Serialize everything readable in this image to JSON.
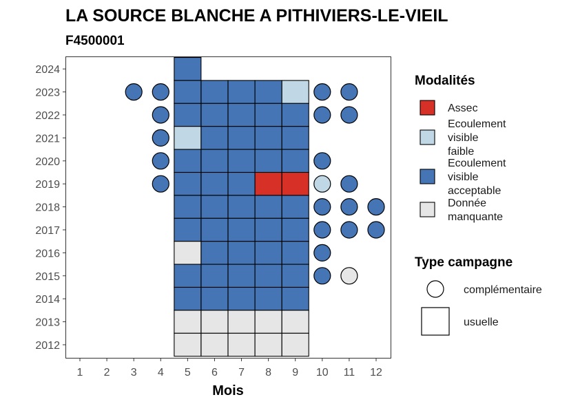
{
  "chart_data": {
    "type": "heatmap",
    "title": "LA SOURCE BLANCHE A PITHIVIERS-LE-VIEIL",
    "subtitle": "F4500001",
    "xlabel": "Mois",
    "ylabel": "",
    "x_ticks": [
      "1",
      "2",
      "3",
      "4",
      "5",
      "6",
      "7",
      "8",
      "9",
      "10",
      "11",
      "12"
    ],
    "y_ticks": [
      "2012",
      "2013",
      "2014",
      "2015",
      "2016",
      "2017",
      "2018",
      "2019",
      "2020",
      "2021",
      "2022",
      "2023",
      "2024"
    ],
    "xlim": [
      1,
      12
    ],
    "ylim": [
      2012,
      2024
    ],
    "grid": false,
    "colors": {
      "assec": "#d73027",
      "faible": "#c0d8e6",
      "acceptable": "#4575b4",
      "manquante": "#e6e6e6"
    },
    "legend_modalites": {
      "title": "Modalités",
      "position": "right",
      "items": [
        {
          "key": "assec",
          "lines": [
            "Assec"
          ]
        },
        {
          "key": "faible",
          "lines": [
            "Ecoulement",
            "visible",
            "faible"
          ]
        },
        {
          "key": "acceptable",
          "lines": [
            "Ecoulement",
            "visible",
            "acceptable"
          ]
        },
        {
          "key": "manquante",
          "lines": [
            "Donnée",
            "manquante"
          ]
        }
      ]
    },
    "legend_campagne": {
      "title": "Type campagne",
      "items": [
        {
          "shape": "circle",
          "label": "complémentaire"
        },
        {
          "shape": "square",
          "label": "usuelle"
        }
      ]
    },
    "usuelle": [
      {
        "year": 2024,
        "month": 5,
        "value": "acceptable"
      },
      {
        "year": 2023,
        "month": 5,
        "value": "acceptable"
      },
      {
        "year": 2023,
        "month": 6,
        "value": "acceptable"
      },
      {
        "year": 2023,
        "month": 7,
        "value": "acceptable"
      },
      {
        "year": 2023,
        "month": 8,
        "value": "acceptable"
      },
      {
        "year": 2023,
        "month": 9,
        "value": "faible"
      },
      {
        "year": 2022,
        "month": 5,
        "value": "acceptable"
      },
      {
        "year": 2022,
        "month": 6,
        "value": "acceptable"
      },
      {
        "year": 2022,
        "month": 7,
        "value": "acceptable"
      },
      {
        "year": 2022,
        "month": 8,
        "value": "acceptable"
      },
      {
        "year": 2022,
        "month": 9,
        "value": "acceptable"
      },
      {
        "year": 2021,
        "month": 5,
        "value": "faible"
      },
      {
        "year": 2021,
        "month": 6,
        "value": "acceptable"
      },
      {
        "year": 2021,
        "month": 7,
        "value": "acceptable"
      },
      {
        "year": 2021,
        "month": 8,
        "value": "acceptable"
      },
      {
        "year": 2021,
        "month": 9,
        "value": "acceptable"
      },
      {
        "year": 2020,
        "month": 5,
        "value": "acceptable"
      },
      {
        "year": 2020,
        "month": 6,
        "value": "acceptable"
      },
      {
        "year": 2020,
        "month": 7,
        "value": "acceptable"
      },
      {
        "year": 2020,
        "month": 8,
        "value": "acceptable"
      },
      {
        "year": 2020,
        "month": 9,
        "value": "acceptable"
      },
      {
        "year": 2019,
        "month": 5,
        "value": "acceptable"
      },
      {
        "year": 2019,
        "month": 6,
        "value": "acceptable"
      },
      {
        "year": 2019,
        "month": 7,
        "value": "acceptable"
      },
      {
        "year": 2019,
        "month": 8,
        "value": "assec"
      },
      {
        "year": 2019,
        "month": 9,
        "value": "assec"
      },
      {
        "year": 2018,
        "month": 5,
        "value": "acceptable"
      },
      {
        "year": 2018,
        "month": 6,
        "value": "acceptable"
      },
      {
        "year": 2018,
        "month": 7,
        "value": "acceptable"
      },
      {
        "year": 2018,
        "month": 8,
        "value": "acceptable"
      },
      {
        "year": 2018,
        "month": 9,
        "value": "acceptable"
      },
      {
        "year": 2017,
        "month": 5,
        "value": "acceptable"
      },
      {
        "year": 2017,
        "month": 6,
        "value": "acceptable"
      },
      {
        "year": 2017,
        "month": 7,
        "value": "acceptable"
      },
      {
        "year": 2017,
        "month": 8,
        "value": "acceptable"
      },
      {
        "year": 2017,
        "month": 9,
        "value": "acceptable"
      },
      {
        "year": 2016,
        "month": 5,
        "value": "manquante"
      },
      {
        "year": 2016,
        "month": 6,
        "value": "acceptable"
      },
      {
        "year": 2016,
        "month": 7,
        "value": "acceptable"
      },
      {
        "year": 2016,
        "month": 8,
        "value": "acceptable"
      },
      {
        "year": 2016,
        "month": 9,
        "value": "acceptable"
      },
      {
        "year": 2015,
        "month": 5,
        "value": "acceptable"
      },
      {
        "year": 2015,
        "month": 6,
        "value": "acceptable"
      },
      {
        "year": 2015,
        "month": 7,
        "value": "acceptable"
      },
      {
        "year": 2015,
        "month": 8,
        "value": "acceptable"
      },
      {
        "year": 2015,
        "month": 9,
        "value": "acceptable"
      },
      {
        "year": 2014,
        "month": 5,
        "value": "acceptable"
      },
      {
        "year": 2014,
        "month": 6,
        "value": "acceptable"
      },
      {
        "year": 2014,
        "month": 7,
        "value": "acceptable"
      },
      {
        "year": 2014,
        "month": 8,
        "value": "acceptable"
      },
      {
        "year": 2014,
        "month": 9,
        "value": "acceptable"
      },
      {
        "year": 2013,
        "month": 5,
        "value": "manquante"
      },
      {
        "year": 2013,
        "month": 6,
        "value": "manquante"
      },
      {
        "year": 2013,
        "month": 7,
        "value": "manquante"
      },
      {
        "year": 2013,
        "month": 8,
        "value": "manquante"
      },
      {
        "year": 2013,
        "month": 9,
        "value": "manquante"
      },
      {
        "year": 2012,
        "month": 5,
        "value": "manquante"
      },
      {
        "year": 2012,
        "month": 6,
        "value": "manquante"
      },
      {
        "year": 2012,
        "month": 7,
        "value": "manquante"
      },
      {
        "year": 2012,
        "month": 8,
        "value": "manquante"
      },
      {
        "year": 2012,
        "month": 9,
        "value": "manquante"
      }
    ],
    "complementaire": [
      {
        "year": 2023,
        "month": 3,
        "value": "acceptable"
      },
      {
        "year": 2023,
        "month": 4,
        "value": "acceptable"
      },
      {
        "year": 2023,
        "month": 10,
        "value": "acceptable"
      },
      {
        "year": 2023,
        "month": 11,
        "value": "acceptable"
      },
      {
        "year": 2022,
        "month": 4,
        "value": "acceptable"
      },
      {
        "year": 2022,
        "month": 10,
        "value": "acceptable"
      },
      {
        "year": 2022,
        "month": 11,
        "value": "acceptable"
      },
      {
        "year": 2021,
        "month": 4,
        "value": "acceptable"
      },
      {
        "year": 2020,
        "month": 4,
        "value": "acceptable"
      },
      {
        "year": 2020,
        "month": 10,
        "value": "acceptable"
      },
      {
        "year": 2019,
        "month": 4,
        "value": "acceptable"
      },
      {
        "year": 2019,
        "month": 10,
        "value": "faible"
      },
      {
        "year": 2019,
        "month": 11,
        "value": "acceptable"
      },
      {
        "year": 2018,
        "month": 10,
        "value": "acceptable"
      },
      {
        "year": 2018,
        "month": 11,
        "value": "acceptable"
      },
      {
        "year": 2018,
        "month": 12,
        "value": "acceptable"
      },
      {
        "year": 2017,
        "month": 10,
        "value": "acceptable"
      },
      {
        "year": 2017,
        "month": 11,
        "value": "acceptable"
      },
      {
        "year": 2017,
        "month": 12,
        "value": "acceptable"
      },
      {
        "year": 2016,
        "month": 10,
        "value": "acceptable"
      },
      {
        "year": 2015,
        "month": 10,
        "value": "acceptable"
      },
      {
        "year": 2015,
        "month": 11,
        "value": "manquante"
      }
    ]
  }
}
